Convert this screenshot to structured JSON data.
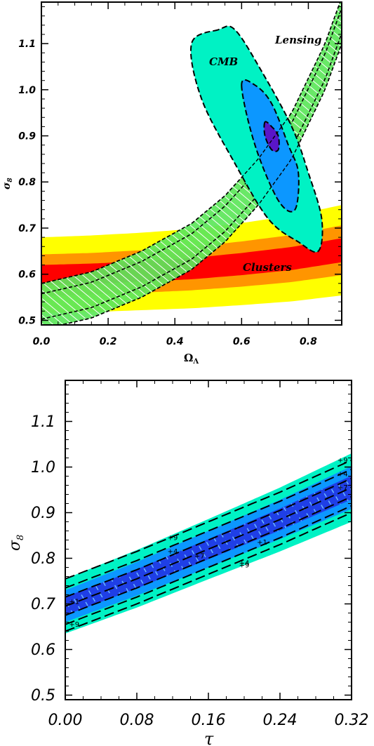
{
  "chart_data": [
    {
      "type": "contour",
      "title": "",
      "xlabel": "Ω",
      "xlabel_sub": "Λ",
      "ylabel": "σ",
      "ylabel_sub": "8",
      "xlim": [
        0.0,
        0.9
      ],
      "ylim": [
        0.49,
        1.19
      ],
      "xticks": [
        0.0,
        0.2,
        0.4,
        0.6,
        0.8
      ],
      "xtick_labels": [
        "0.0",
        "0.2",
        "0.4",
        "0.6",
        "0.8"
      ],
      "yticks": [
        0.5,
        0.6,
        0.7,
        0.8,
        0.9,
        1.0,
        1.1
      ],
      "ytick_labels": [
        "0.5",
        "0.6",
        "0.7",
        "0.8",
        "0.9",
        "1.0",
        "1.1"
      ],
      "grid": false,
      "annotations": [
        {
          "text": "CMB",
          "x": 0.55,
          "y": 1.06
        },
        {
          "text": "Lensing",
          "x": 0.82,
          "y": 1.15
        },
        {
          "text": "Clusters",
          "x": 0.73,
          "y": 0.62
        }
      ],
      "colors": {
        "cmb_outer": "#00f2c4",
        "cmb_mid": "#0c97ff",
        "cmb_inner": "#5a16c8",
        "clusters_outer": "#ffff00",
        "clusters_mid": "#ff9500",
        "clusters_inner": "#ff0000",
        "lensing": "#5ce65a"
      },
      "series": [
        {
          "name": "Clusters",
          "kind": "band",
          "x": [
            0.0,
            0.15,
            0.3,
            0.45,
            0.6,
            0.75,
            0.9
          ],
          "center": [
            0.598,
            0.601,
            0.606,
            0.612,
            0.622,
            0.634,
            0.652
          ],
          "half_width_inner": [
            0.022,
            0.022,
            0.022,
            0.023,
            0.024,
            0.025,
            0.026
          ],
          "half_width_mid": [
            0.045,
            0.045,
            0.046,
            0.047,
            0.049,
            0.051,
            0.054
          ],
          "half_width_outer": [
            0.082,
            0.083,
            0.084,
            0.086,
            0.089,
            0.093,
            0.098
          ]
        },
        {
          "name": "Lensing",
          "kind": "band",
          "x": [
            0.0,
            0.15,
            0.3,
            0.45,
            0.55,
            0.65,
            0.75,
            0.85,
            0.9
          ],
          "center": [
            0.53,
            0.555,
            0.6,
            0.66,
            0.72,
            0.8,
            0.9,
            1.05,
            1.15
          ],
          "half_width": 0.05
        },
        {
          "name": "CMB",
          "kind": "contours",
          "levels": [
            "1σ",
            "2σ",
            "3σ"
          ],
          "center": {
            "x": 0.685,
            "y": 0.895
          },
          "outer_contour": [
            [
              0.53,
              1.13
            ],
            [
              0.45,
              1.1
            ],
            [
              0.48,
              0.98
            ],
            [
              0.58,
              0.84
            ],
            [
              0.68,
              0.72
            ],
            [
              0.77,
              0.67
            ],
            [
              0.83,
              0.65
            ],
            [
              0.84,
              0.72
            ],
            [
              0.8,
              0.82
            ],
            [
              0.75,
              0.92
            ],
            [
              0.66,
              1.04
            ],
            [
              0.58,
              1.13
            ]
          ],
          "mid_contour": [
            [
              0.6,
              1.01
            ],
            [
              0.64,
              0.88
            ],
            [
              0.71,
              0.76
            ],
            [
              0.76,
              0.74
            ],
            [
              0.77,
              0.82
            ],
            [
              0.74,
              0.88
            ],
            [
              0.69,
              0.97
            ],
            [
              0.64,
              1.01
            ]
          ],
          "inner_contour": [
            [
              0.67,
              0.93
            ],
            [
              0.67,
              0.9
            ],
            [
              0.69,
              0.87
            ],
            [
              0.71,
              0.87
            ],
            [
              0.71,
              0.9
            ],
            [
              0.69,
              0.92
            ]
          ]
        }
      ]
    },
    {
      "type": "contour",
      "title": "",
      "xlabel": "τ",
      "ylabel": "σ",
      "ylabel_sub": "8",
      "xlim": [
        0.0,
        0.32
      ],
      "ylim": [
        0.49,
        1.19
      ],
      "xticks": [
        0.0,
        0.08,
        0.16,
        0.24,
        0.32
      ],
      "xtick_labels": [
        "0.00",
        "0.08",
        "0.16",
        "0.24",
        "0.32"
      ],
      "yticks": [
        0.5,
        0.6,
        0.7,
        0.8,
        0.9,
        1.0,
        1.1
      ],
      "ytick_labels": [
        "0.5",
        "0.6",
        "0.7",
        "0.8",
        "0.9",
        "1.0",
        "1.1"
      ],
      "grid": false,
      "contour_labels": [
        {
          "text": "+9",
          "x": 0.12,
          "y": 0.84
        },
        {
          "text": "+4",
          "x": 0.12,
          "y": 0.81
        },
        {
          "text": "+7",
          "x": 0.15,
          "y": 0.8
        },
        {
          "text": "+1",
          "x": 0.01,
          "y": 0.7
        },
        {
          "text": "+9",
          "x": 0.01,
          "y": 0.65
        },
        {
          "text": "+1",
          "x": 0.22,
          "y": 0.83
        },
        {
          "text": "+9",
          "x": 0.2,
          "y": 0.78
        },
        {
          "text": "+4",
          "x": 0.2,
          "y": 0.785
        },
        {
          "text": "+9",
          "x": 0.31,
          "y": 1.01
        },
        {
          "text": "+4",
          "x": 0.31,
          "y": 0.98
        },
        {
          "text": "+7",
          "x": 0.31,
          "y": 0.95
        }
      ],
      "colors": {
        "outer": "#00f2c4",
        "mid": "#0c97ff",
        "inner": "#1f3fe6"
      },
      "series": [
        {
          "name": "",
          "kind": "band",
          "x": [
            0.0,
            0.08,
            0.16,
            0.24,
            0.32
          ],
          "center": [
            0.695,
            0.755,
            0.82,
            0.885,
            0.955
          ],
          "half_width_inner": [
            0.02,
            0.021,
            0.022,
            0.024,
            0.026
          ],
          "half_width_mid": [
            0.035,
            0.037,
            0.04,
            0.043,
            0.047
          ],
          "half_width_outer": [
            0.06,
            0.063,
            0.066,
            0.07,
            0.075
          ],
          "dashed_offsets": [
            -0.055,
            -0.04,
            -0.02,
            0.0,
            0.02,
            0.04,
            0.06
          ]
        }
      ]
    }
  ]
}
